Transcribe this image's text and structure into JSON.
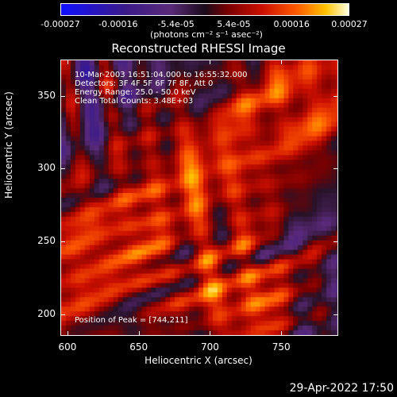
{
  "colorbar": {
    "tick_labels": [
      "-0.00027",
      "-0.00016",
      "-5.4e-05",
      "5.4e-05",
      "0.00016",
      "0.00027"
    ],
    "unit": "(photons cm⁻² s⁻¹ asec⁻²)"
  },
  "chart_data": {
    "type": "heatmap",
    "title": "Reconstructed RHESSI Image",
    "xlabel": "Heliocentric X (arcsec)",
    "ylabel": "Heliocentric Y (arcsec)",
    "xlim": [
      595,
      790
    ],
    "ylim": [
      185,
      375
    ],
    "x_ticks": [
      "600",
      "650",
      "700",
      "750"
    ],
    "y_ticks": [
      "200",
      "250",
      "300",
      "350"
    ],
    "x_tick_values": [
      600,
      650,
      700,
      750
    ],
    "y_tick_values": [
      200,
      250,
      300,
      350
    ],
    "zlim": [
      -0.00027,
      0.00027
    ],
    "annotations": [
      "10-Mar-2003 16:51:04.000 to 16:55:32.000",
      "Detectors: 3F 4F 5F 6F 7F 8F, Att 0",
      "Energy Range: 25.0 - 50.0 keV",
      "Clean     Total Counts: 3.48E+03",
      "Position of Peak = [744,211]"
    ]
  },
  "footer": {
    "timestamp": "29-Apr-2022 17:50"
  }
}
